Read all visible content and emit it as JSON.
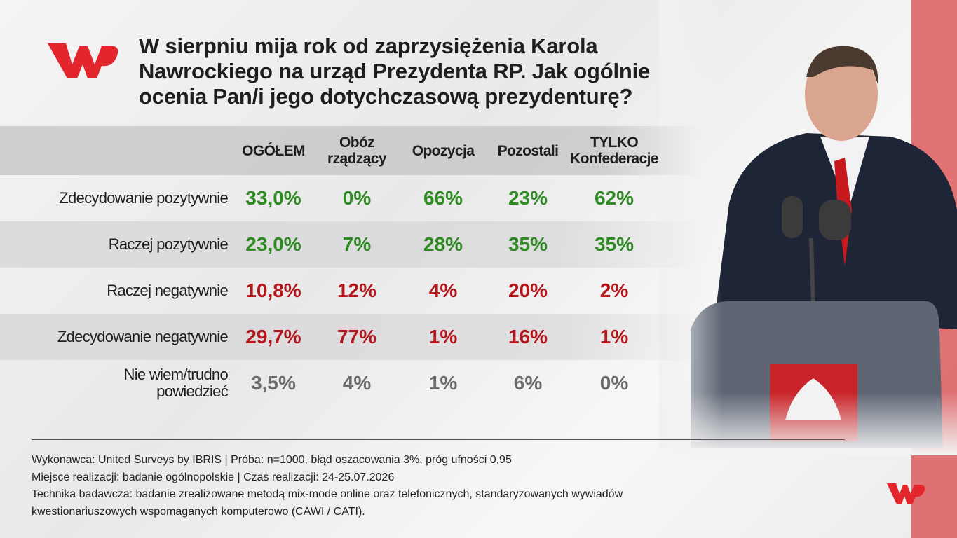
{
  "header": {
    "title": "W sierpniu mija rok od zaprzysiężenia Karola Nawrockiego na urząd Prezydenta RP. Jak ogólnie ocenia Pan/i jego dotychczasową prezydenturę?"
  },
  "table": {
    "columns": [
      "OGÓŁEM",
      "Obóz rządzący",
      "Opozycja",
      "Pozostali",
      "TYLKO Konfederacje"
    ],
    "rows": [
      {
        "label": "Zdecydowanie pozytywnie",
        "color": "#2e8b22",
        "values": [
          "33,0%",
          "0%",
          "66%",
          "23%",
          "62%"
        ]
      },
      {
        "label": "Raczej pozytywnie",
        "color": "#2e8b22",
        "values": [
          "23,0%",
          "7%",
          "28%",
          "35%",
          "35%"
        ]
      },
      {
        "label": "Raczej negatywnie",
        "color": "#b3171b",
        "values": [
          "10,8%",
          "12%",
          "4%",
          "20%",
          "2%"
        ]
      },
      {
        "label": "Zdecydowanie negatywnie",
        "color": "#b3171b",
        "values": [
          "29,7%",
          "77%",
          "1%",
          "16%",
          "1%"
        ]
      },
      {
        "label": "Nie wiem/trudno powiedzieć",
        "color": "#6b6b6b",
        "values": [
          "3,5%",
          "4%",
          "1%",
          "6%",
          "0%"
        ]
      }
    ]
  },
  "footer": {
    "lines": [
      "Wykonawca: United Surveys by IBRIS | Próba: n=1000, błąd oszacowania 3%, próg ufności 0,95",
      "Miejsce realizacji: badanie ogólnopolskie | Czas realizacji: 24-25.07.2026",
      "Technika badawcza: badanie zrealizowane metodą mix-mode online oraz telefonicznych, standaryzowanych wywiadów kwestionariuszowych wspomaganych komputerowo (CAWI / CATI)."
    ]
  }
}
